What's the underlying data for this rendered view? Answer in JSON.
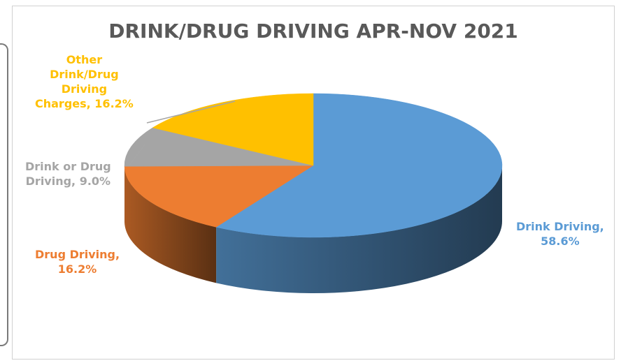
{
  "chart_data": {
    "type": "pie",
    "title": "DRINK/DRUG DRIVING APR-NOV 2021",
    "slices": [
      {
        "label": "Drink Driving",
        "value": 58.6,
        "display": "58.6%",
        "color": "#5b9bd5",
        "lines": [
          "Drink Driving,",
          "58.6%"
        ]
      },
      {
        "label": "Drug Driving",
        "value": 16.2,
        "display": "16.2%",
        "color": "#ed7d31",
        "lines": [
          "Drug Driving,",
          "16.2%"
        ]
      },
      {
        "label": "Drink or Drug Driving",
        "value": 9.0,
        "display": "9.0%",
        "color": "#a5a5a5",
        "lines": [
          "Drink or Drug",
          "Driving, 9.0%"
        ]
      },
      {
        "label": "Other Drink/Drug Driving Charges",
        "value": 16.2,
        "display": "16.2%",
        "color": "#ffc000",
        "lines": [
          "Other",
          "Drink/Drug",
          "Driving",
          "Charges, 16.2%"
        ]
      }
    ]
  }
}
